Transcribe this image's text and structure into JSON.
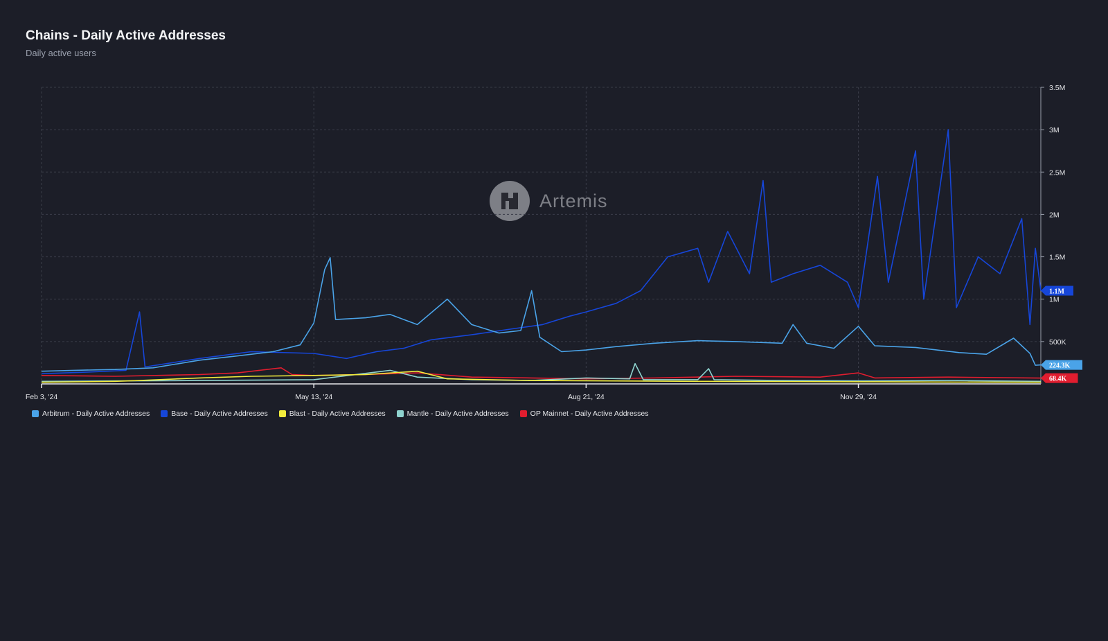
{
  "header": {
    "title": "Chains - Daily Active Addresses",
    "subtitle": "Daily active users"
  },
  "watermark": {
    "text": "Artemis"
  },
  "colors": {
    "background": "#1c1e28",
    "grid": "#3a3d49",
    "arbitrum": "#4aa3e8",
    "base": "#1646d9",
    "blast": "#f2ec3c",
    "mantle": "#8fd3cf",
    "op": "#e11d2f"
  },
  "legend": [
    {
      "label": "Arbitrum - Daily Active Addresses",
      "color": "#4aa3e8"
    },
    {
      "label": "Base - Daily Active Addresses",
      "color": "#1646d9"
    },
    {
      "label": "Blast - Daily Active Addresses",
      "color": "#f2ec3c"
    },
    {
      "label": "Mantle - Daily Active Addresses",
      "color": "#8fd3cf"
    },
    {
      "label": "OP Mainnet - Daily Active Addresses",
      "color": "#e11d2f"
    }
  ],
  "chart_data": {
    "type": "line",
    "title": "Chains - Daily Active Addresses",
    "subtitle": "Daily active users",
    "x_range": [
      "2024-02-03",
      "2025-02-04"
    ],
    "x_ticks": [
      {
        "date": "2024-02-03",
        "label": "Feb 3, '24"
      },
      {
        "date": "2024-05-13",
        "label": "May 13, '24"
      },
      {
        "date": "2024-08-21",
        "label": "Aug 21, '24"
      },
      {
        "date": "2024-11-29",
        "label": "Nov 29, '24"
      }
    ],
    "y_ticks": [
      {
        "value": 500000,
        "label": "500K"
      },
      {
        "value": 1000000,
        "label": "1M"
      },
      {
        "value": 1500000,
        "label": "1.5M"
      },
      {
        "value": 2000000,
        "label": "2M"
      },
      {
        "value": 2500000,
        "label": "2.5M"
      },
      {
        "value": 3000000,
        "label": "3M"
      },
      {
        "value": 3500000,
        "label": "3.5M"
      }
    ],
    "ylim": [
      0,
      3500000
    ],
    "grid": true,
    "legend_position": "bottom-left",
    "last_value_labels": [
      {
        "series": "Base - Daily Active Addresses",
        "label": "1.1M",
        "value": 1100000
      },
      {
        "series": "Arbitrum - Daily Active Addresses",
        "label": "224.3K",
        "value": 224300
      },
      {
        "series": "OP Mainnet - Daily Active Addresses",
        "label": "68.4K",
        "value": 68400
      }
    ],
    "series": [
      {
        "name": "Arbitrum - Daily Active Addresses",
        "color": "#4aa3e8",
        "points": [
          [
            "2024-02-03",
            150000
          ],
          [
            "2024-02-15",
            160000
          ],
          [
            "2024-03-01",
            170000
          ],
          [
            "2024-03-15",
            190000
          ],
          [
            "2024-04-01",
            280000
          ],
          [
            "2024-04-15",
            330000
          ],
          [
            "2024-04-28",
            380000
          ],
          [
            "2024-05-08",
            460000
          ],
          [
            "2024-05-13",
            720000
          ],
          [
            "2024-05-17",
            1350000
          ],
          [
            "2024-05-19",
            1490000
          ],
          [
            "2024-05-21",
            760000
          ],
          [
            "2024-06-01",
            780000
          ],
          [
            "2024-06-10",
            820000
          ],
          [
            "2024-06-20",
            700000
          ],
          [
            "2024-07-01",
            1000000
          ],
          [
            "2024-07-10",
            700000
          ],
          [
            "2024-07-20",
            600000
          ],
          [
            "2024-07-28",
            630000
          ],
          [
            "2024-08-01",
            1100000
          ],
          [
            "2024-08-04",
            550000
          ],
          [
            "2024-08-12",
            380000
          ],
          [
            "2024-08-21",
            400000
          ],
          [
            "2024-09-01",
            440000
          ],
          [
            "2024-09-15",
            480000
          ],
          [
            "2024-10-01",
            510000
          ],
          [
            "2024-10-15",
            500000
          ],
          [
            "2024-11-01",
            480000
          ],
          [
            "2024-11-05",
            700000
          ],
          [
            "2024-11-10",
            480000
          ],
          [
            "2024-11-20",
            420000
          ],
          [
            "2024-11-29",
            680000
          ],
          [
            "2024-12-05",
            450000
          ],
          [
            "2024-12-20",
            430000
          ],
          [
            "2025-01-05",
            370000
          ],
          [
            "2025-01-15",
            350000
          ],
          [
            "2025-01-25",
            540000
          ],
          [
            "2025-01-31",
            360000
          ],
          [
            "2025-02-02",
            220000
          ],
          [
            "2025-02-04",
            224300
          ]
        ]
      },
      {
        "name": "Base - Daily Active Addresses",
        "color": "#1646d9",
        "points": [
          [
            "2024-02-03",
            120000
          ],
          [
            "2024-02-20",
            140000
          ],
          [
            "2024-03-05",
            160000
          ],
          [
            "2024-03-10",
            850000
          ],
          [
            "2024-03-12",
            200000
          ],
          [
            "2024-04-01",
            300000
          ],
          [
            "2024-04-20",
            380000
          ],
          [
            "2024-05-13",
            360000
          ],
          [
            "2024-05-25",
            300000
          ],
          [
            "2024-06-05",
            380000
          ],
          [
            "2024-06-15",
            420000
          ],
          [
            "2024-06-25",
            520000
          ],
          [
            "2024-07-10",
            580000
          ],
          [
            "2024-07-25",
            650000
          ],
          [
            "2024-08-05",
            700000
          ],
          [
            "2024-08-15",
            800000
          ],
          [
            "2024-08-21",
            850000
          ],
          [
            "2024-09-01",
            950000
          ],
          [
            "2024-09-10",
            1100000
          ],
          [
            "2024-09-20",
            1500000
          ],
          [
            "2024-10-01",
            1600000
          ],
          [
            "2024-10-05",
            1200000
          ],
          [
            "2024-10-12",
            1800000
          ],
          [
            "2024-10-20",
            1300000
          ],
          [
            "2024-10-25",
            2400000
          ],
          [
            "2024-10-28",
            1200000
          ],
          [
            "2024-11-05",
            1300000
          ],
          [
            "2024-11-15",
            1400000
          ],
          [
            "2024-11-25",
            1200000
          ],
          [
            "2024-11-29",
            900000
          ],
          [
            "2024-12-06",
            2450000
          ],
          [
            "2024-12-10",
            1200000
          ],
          [
            "2024-12-20",
            2750000
          ],
          [
            "2024-12-23",
            1000000
          ],
          [
            "2025-01-01",
            3000000
          ],
          [
            "2025-01-04",
            900000
          ],
          [
            "2025-01-12",
            1500000
          ],
          [
            "2025-01-20",
            1300000
          ],
          [
            "2025-01-28",
            1950000
          ],
          [
            "2025-01-31",
            700000
          ],
          [
            "2025-02-02",
            1600000
          ],
          [
            "2025-02-04",
            1100000
          ]
        ]
      },
      {
        "name": "Blast - Daily Active Addresses",
        "color": "#f2ec3c",
        "points": [
          [
            "2024-02-03",
            20000
          ],
          [
            "2024-03-01",
            30000
          ],
          [
            "2024-03-10",
            40000
          ],
          [
            "2024-04-01",
            70000
          ],
          [
            "2024-04-20",
            90000
          ],
          [
            "2024-05-13",
            100000
          ],
          [
            "2024-06-01",
            110000
          ],
          [
            "2024-06-20",
            150000
          ],
          [
            "2024-07-01",
            60000
          ],
          [
            "2024-08-01",
            40000
          ],
          [
            "2024-09-01",
            35000
          ],
          [
            "2024-10-01",
            30000
          ],
          [
            "2024-11-01",
            28000
          ],
          [
            "2024-12-01",
            25000
          ],
          [
            "2025-01-01",
            22000
          ],
          [
            "2025-02-04",
            20000
          ]
        ]
      },
      {
        "name": "Mantle - Daily Active Addresses",
        "color": "#8fd3cf",
        "points": [
          [
            "2024-02-03",
            30000
          ],
          [
            "2024-03-01",
            35000
          ],
          [
            "2024-04-01",
            40000
          ],
          [
            "2024-05-13",
            50000
          ],
          [
            "2024-06-10",
            160000
          ],
          [
            "2024-06-20",
            80000
          ],
          [
            "2024-07-10",
            50000
          ],
          [
            "2024-08-01",
            40000
          ],
          [
            "2024-08-21",
            70000
          ],
          [
            "2024-09-06",
            60000
          ],
          [
            "2024-09-08",
            240000
          ],
          [
            "2024-09-11",
            50000
          ],
          [
            "2024-10-01",
            50000
          ],
          [
            "2024-10-05",
            180000
          ],
          [
            "2024-10-07",
            50000
          ],
          [
            "2024-11-01",
            40000
          ],
          [
            "2024-12-01",
            35000
          ],
          [
            "2025-01-01",
            40000
          ],
          [
            "2025-02-04",
            30000
          ]
        ]
      },
      {
        "name": "OP Mainnet - Daily Active Addresses",
        "color": "#e11d2f",
        "points": [
          [
            "2024-02-03",
            100000
          ],
          [
            "2024-03-01",
            90000
          ],
          [
            "2024-04-01",
            110000
          ],
          [
            "2024-04-15",
            130000
          ],
          [
            "2024-05-01",
            190000
          ],
          [
            "2024-05-05",
            110000
          ],
          [
            "2024-05-13",
            100000
          ],
          [
            "2024-06-01",
            110000
          ],
          [
            "2024-06-20",
            130000
          ],
          [
            "2024-07-10",
            80000
          ],
          [
            "2024-08-01",
            70000
          ],
          [
            "2024-08-21",
            60000
          ],
          [
            "2024-09-15",
            70000
          ],
          [
            "2024-10-15",
            90000
          ],
          [
            "2024-11-15",
            80000
          ],
          [
            "2024-11-29",
            130000
          ],
          [
            "2024-12-05",
            70000
          ],
          [
            "2025-01-01",
            80000
          ],
          [
            "2025-02-04",
            68400
          ]
        ]
      }
    ]
  }
}
